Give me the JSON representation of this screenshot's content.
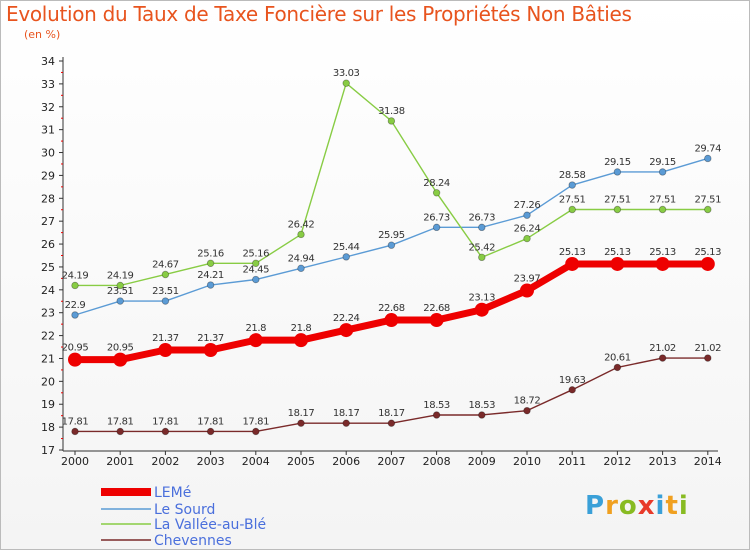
{
  "title": "Evolution du Taux de Taxe Foncière sur les Propriétés Non Bâties",
  "subtitle": "(en %)",
  "logo": {
    "letters": [
      "P",
      "r",
      "o",
      "x",
      "i",
      "t",
      "i"
    ],
    "colors": [
      "#3aa0d8",
      "#f0a020",
      "#88bb22",
      "#e83a2a",
      "#3aa0d8",
      "#f0a020",
      "#88bb22"
    ]
  },
  "chart_data": {
    "type": "line",
    "title": "Evolution du Taux de Taxe Foncière sur les Propriétés Non Bâties",
    "ylabel": "(en %)",
    "xlabel": "",
    "x": [
      "2000",
      "2001",
      "2002",
      "2003",
      "2004",
      "2005",
      "2006",
      "2007",
      "2008",
      "2009",
      "2010",
      "2011",
      "2012",
      "2013",
      "2014"
    ],
    "ylim": [
      17,
      34
    ],
    "yticks": [
      "17",
      "18",
      "19",
      "20",
      "21",
      "22",
      "23",
      "24",
      "25",
      "26",
      "27",
      "28",
      "29",
      "30",
      "31",
      "32",
      "33",
      "34"
    ],
    "grid": false,
    "legend_position": "bottom-left",
    "series": [
      {
        "name": "LEMé",
        "color": "#ee0000",
        "emphasis": true,
        "values": [
          20.95,
          20.95,
          21.37,
          21.37,
          21.8,
          21.8,
          22.24,
          22.68,
          22.68,
          23.13,
          23.97,
          25.13,
          25.13,
          25.13,
          25.13
        ],
        "labels": [
          "20.95",
          "20.95",
          "21.37",
          "21.37",
          "21.8",
          "21.8",
          "22.24",
          "22.68",
          "22.68",
          "23.13",
          "23.97",
          "25.13",
          "25.13",
          "25.13",
          "25.13"
        ]
      },
      {
        "name": "Le Sourd",
        "color": "#5b9bd5",
        "emphasis": false,
        "values": [
          22.9,
          23.51,
          23.51,
          24.21,
          24.45,
          24.94,
          25.44,
          25.95,
          26.73,
          26.73,
          27.26,
          28.58,
          29.15,
          29.15,
          29.74
        ],
        "labels": [
          "22.9",
          "23.51",
          "23.51",
          "24.21",
          "24.45",
          "24.94",
          "25.44",
          "25.95",
          "26.73",
          "26.73",
          "27.26",
          "28.58",
          "29.15",
          "29.15",
          "29.74"
        ]
      },
      {
        "name": "La Vallée-au-Blé",
        "color": "#88cc44",
        "emphasis": false,
        "values": [
          24.19,
          24.19,
          24.67,
          25.16,
          25.16,
          26.42,
          33.03,
          31.38,
          28.24,
          25.42,
          26.24,
          27.51,
          27.51,
          27.51,
          27.51
        ],
        "labels": [
          "24.19",
          "24.19",
          "24.67",
          "25.16",
          "25.16",
          "26.42",
          "33.03",
          "31.38",
          "28.24",
          "25.42",
          "26.24",
          "27.51",
          "27.51",
          "27.51",
          "27.51"
        ]
      },
      {
        "name": "Chevennes",
        "color": "#7a2a2a",
        "emphasis": false,
        "values": [
          17.81,
          17.81,
          17.81,
          17.81,
          17.81,
          18.17,
          18.17,
          18.17,
          18.53,
          18.53,
          18.72,
          19.63,
          20.61,
          21.02,
          21.02
        ],
        "labels": [
          "17.81",
          "17.81",
          "17.81",
          "17.81",
          "17.81",
          "18.17",
          "18.17",
          "18.17",
          "18.53",
          "18.53",
          "18.72",
          "19.63",
          "20.61",
          "21.02",
          "21.02"
        ]
      }
    ]
  }
}
